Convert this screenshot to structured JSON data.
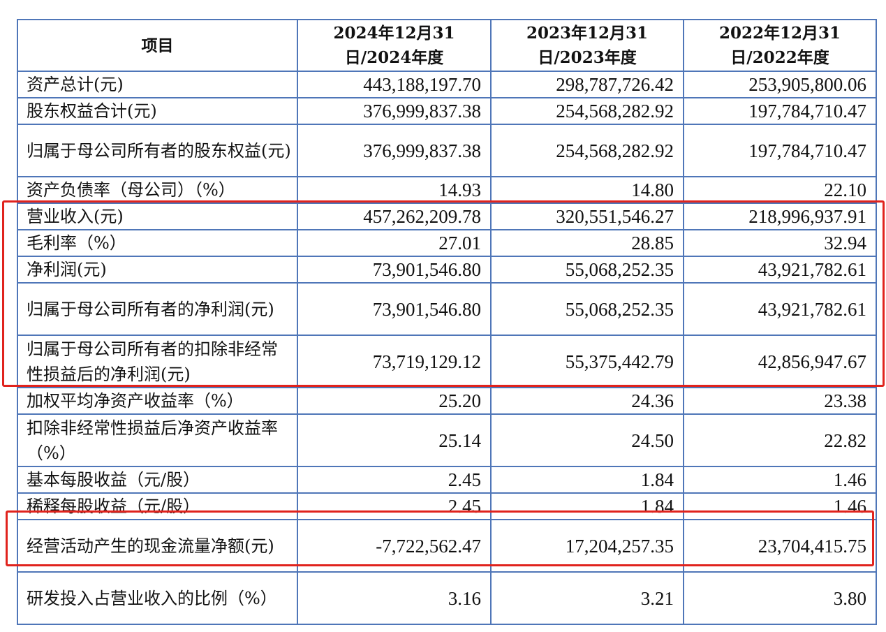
{
  "header": [
    "项目",
    "2024年12月31日/2024年度",
    "2023年12月31日/2023年度",
    "2022年12月31日/2022年度"
  ],
  "rows": [
    {
      "label": "资产总计(元)",
      "v2024": "443,188,197.70",
      "v2023": "298,787,726.42",
      "v2022": "253,905,800.06"
    },
    {
      "label": "股东权益合计(元)",
      "v2024": "376,999,837.38",
      "v2023": "254,568,282.92",
      "v2022": "197,784,710.47"
    },
    {
      "label": "归属于母公司所有者的股东权益(元)",
      "v2024": "376,999,837.38",
      "v2023": "254,568,282.92",
      "v2022": "197,784,710.47"
    },
    {
      "label": "资产负债率（母公司）（%）",
      "v2024": "14.93",
      "v2023": "14.80",
      "v2022": "22.10"
    },
    {
      "label": "营业收入(元)",
      "v2024": "457,262,209.78",
      "v2023": "320,551,546.27",
      "v2022": "218,996,937.91"
    },
    {
      "label": "毛利率（%）",
      "v2024": "27.01",
      "v2023": "28.85",
      "v2022": "32.94"
    },
    {
      "label": "净利润(元)",
      "v2024": "73,901,546.80",
      "v2023": "55,068,252.35",
      "v2022": "43,921,782.61"
    },
    {
      "label": "归属于母公司所有者的净利润(元)",
      "v2024": "73,901,546.80",
      "v2023": "55,068,252.35",
      "v2022": "43,921,782.61"
    },
    {
      "label": "归属于母公司所有者的扣除非经常性损益后的净利润(元)",
      "v2024": "73,719,129.12",
      "v2023": "55,375,442.79",
      "v2022": "42,856,947.67"
    },
    {
      "label": "加权平均净资产收益率（%）",
      "v2024": "25.20",
      "v2023": "24.36",
      "v2022": "23.38"
    },
    {
      "label": "扣除非经常性损益后净资产收益率（%）",
      "v2024": "25.14",
      "v2023": "24.50",
      "v2022": "22.82"
    },
    {
      "label": "基本每股收益（元/股）",
      "v2024": "2.45",
      "v2023": "1.84",
      "v2022": "1.46"
    },
    {
      "label": "稀释每股收益（元/股）",
      "v2024": "2.45",
      "v2023": "1.84",
      "v2022": "1.46"
    },
    {
      "label": "经营活动产生的现金流量净额(元)",
      "v2024": "-7,722,562.47",
      "v2023": "17,204,257.35",
      "v2022": "23,704,415.75"
    },
    {
      "label": "研发投入占营业收入的比例（%）",
      "v2024": "3.16",
      "v2023": "3.21",
      "v2022": "3.80"
    }
  ],
  "highlight_color": "#e0231d",
  "border_color": "#4f76b8"
}
